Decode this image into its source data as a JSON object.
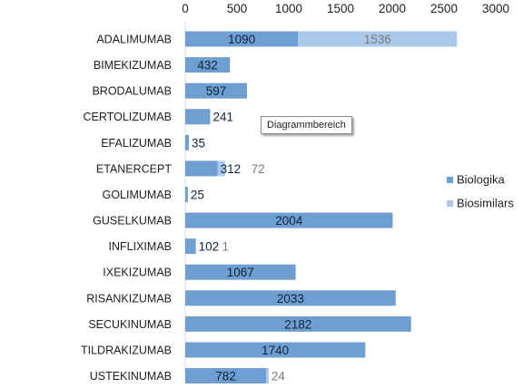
{
  "chart_data": {
    "type": "bar",
    "orientation": "horizontal",
    "stacked": true,
    "categories": [
      "ADALIMUMAB",
      "BIMEKIZUMAB",
      "BRODALUMAB",
      "CERTOLIZUMAB",
      "EFALIZUMAB",
      "ETANERCEPT",
      "GOLIMUMAB",
      "GUSELKUMAB",
      "INFLIXIMAB",
      "IXEKIZUMAB",
      "RISANKIZUMAB",
      "SECUKINUMAB",
      "TILDRAKIZUMAB",
      "USTEKINUMAB"
    ],
    "series": [
      {
        "name": "Biologika",
        "color": "#6f9fd0",
        "label_color": "#10233c",
        "values": [
          1090,
          432,
          597,
          241,
          35,
          312,
          25,
          2004,
          102,
          1067,
          2033,
          2182,
          1740,
          782
        ]
      },
      {
        "name": "Biosimilars",
        "color": "#a9c8ea",
        "label_color": "#7a7a7a",
        "values": [
          1536,
          null,
          null,
          null,
          null,
          72,
          null,
          null,
          1,
          null,
          null,
          null,
          null,
          24
        ]
      }
    ],
    "xlim": [
      0,
      3000
    ],
    "xticks": [
      0,
      500,
      1000,
      1500,
      2000,
      2500,
      3000
    ],
    "x_axis_position": "top",
    "grid": false,
    "legend_position": "right",
    "title": "",
    "xlabel": "",
    "ylabel": ""
  },
  "tooltip": "Diagrammbereich"
}
